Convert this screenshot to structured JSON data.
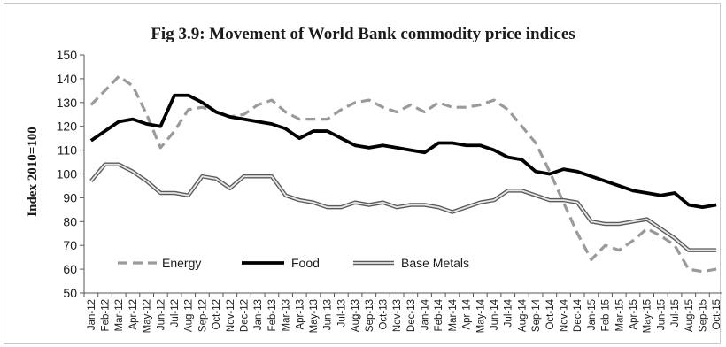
{
  "chart_data": {
    "type": "line",
    "title": "Fig 3.9: Movement of World Bank commodity price indices",
    "ylabel": "Index  2010=100",
    "xlabel": "",
    "ylim": [
      50,
      150
    ],
    "yticks": [
      50,
      60,
      70,
      80,
      90,
      100,
      110,
      120,
      130,
      140,
      150
    ],
    "grid": false,
    "legend_position": "bottom-left",
    "x": [
      "Jan-12",
      "Feb-12",
      "Mar-12",
      "Apr-12",
      "May-12",
      "Jun-12",
      "Jul-12",
      "Aug-12",
      "Sep-12",
      "Oct-12",
      "Nov-12",
      "Dec-12",
      "Jan-13",
      "Feb-13",
      "Mar-13",
      "Apr-13",
      "May-13",
      "Jun-13",
      "Jul-13",
      "Aug-13",
      "Sep-13",
      "Oct-13",
      "Nov-13",
      "Dec-13",
      "Jan-14",
      "Feb-14",
      "Mar-14",
      "Apr-14",
      "May-14",
      "Jun-14",
      "Jul-14",
      "Aug-14",
      "Sep-14",
      "Oct-14",
      "Nov-14",
      "Dec-14",
      "Jan-15",
      "Feb-15",
      "Mar-15",
      "Apr-15",
      "May-15",
      "Jun-15",
      "Jul-15",
      "Aug-15",
      "Sep-15",
      "Oct-15"
    ],
    "series": [
      {
        "name": "Energy",
        "style": "dashed",
        "color": "#999999",
        "values": [
          129,
          135,
          141,
          137,
          125,
          111,
          118,
          127,
          128,
          126,
          124,
          125,
          129,
          131,
          126,
          123,
          123,
          123,
          127,
          130,
          131,
          128,
          126,
          129,
          126,
          130,
          128,
          128,
          129,
          131,
          127,
          120,
          113,
          101,
          88,
          75,
          64,
          70,
          68,
          72,
          77,
          74,
          70,
          60,
          59,
          60
        ]
      },
      {
        "name": "Food",
        "style": "solid-thick",
        "color": "#000000",
        "values": [
          114,
          118,
          122,
          123,
          121,
          120,
          133,
          133,
          130,
          126,
          124,
          123,
          122,
          121,
          119,
          115,
          118,
          118,
          115,
          112,
          111,
          112,
          111,
          110,
          109,
          113,
          113,
          112,
          112,
          110,
          107,
          106,
          101,
          100,
          102,
          101,
          99,
          97,
          95,
          93,
          92,
          91,
          92,
          87,
          86,
          87
        ]
      },
      {
        "name": "Base Metals",
        "style": "double",
        "color": "#555555",
        "values": [
          97,
          104,
          104,
          101,
          97,
          92,
          92,
          91,
          99,
          98,
          94,
          99,
          99,
          99,
          91,
          89,
          88,
          86,
          86,
          88,
          87,
          88,
          86,
          87,
          87,
          86,
          84,
          86,
          88,
          89,
          93,
          93,
          91,
          89,
          89,
          88,
          80,
          79,
          79,
          80,
          81,
          77,
          73,
          68,
          68,
          68
        ]
      }
    ]
  }
}
